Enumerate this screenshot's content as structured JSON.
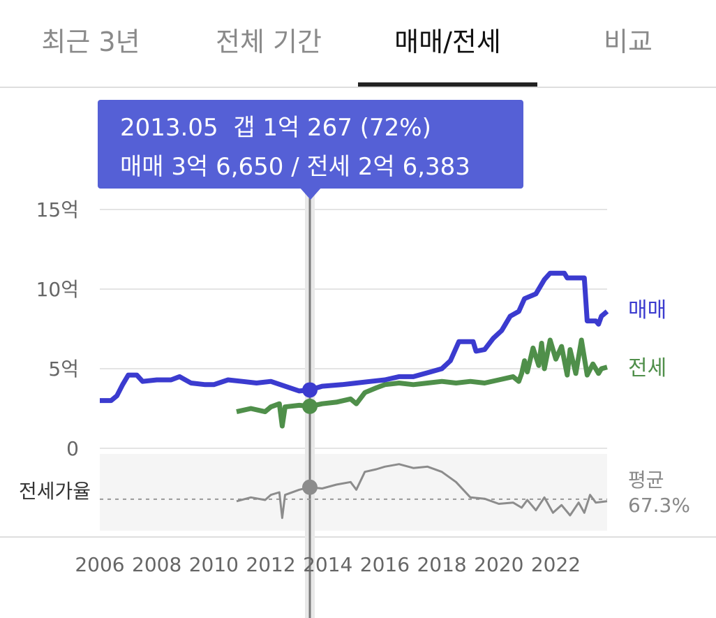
{
  "tabs": [
    {
      "label": "최근 3년",
      "active": false
    },
    {
      "label": "전체 기간",
      "active": false
    },
    {
      "label": "매매/전세",
      "active": true
    },
    {
      "label": "비교",
      "active": false
    }
  ],
  "tooltip": {
    "date": "2013.05",
    "gap": "갭 1억 267 (72%)",
    "line2": "매매 3억 6,650 / 전세 2억 6,383"
  },
  "colors": {
    "sale": "#3b3bcf",
    "jeonse": "#4f8f4a",
    "ratio": "#8c8c8c",
    "tooltip": "#5560d6"
  },
  "chart_data": {
    "type": "line",
    "x_ticks": [
      "2006",
      "2008",
      "2010",
      "2012",
      "2014",
      "2016",
      "2018",
      "2020",
      "2022"
    ],
    "y_ticks": [
      {
        "value": 0,
        "label": "0"
      },
      {
        "value": 5,
        "label": "5억"
      },
      {
        "value": 10,
        "label": "10억"
      },
      {
        "value": 15,
        "label": "15억"
      }
    ],
    "ylim": [
      0,
      15
    ],
    "xlim": [
      2006.0,
      2023.8
    ],
    "grid": true,
    "selected": {
      "x": 2013.37,
      "sale": 3.665,
      "jeonse": 2.638,
      "ratio": 72
    },
    "series": [
      {
        "name": "매매",
        "values": [
          [
            2006.0,
            3.0
          ],
          [
            2006.4,
            3.0
          ],
          [
            2006.6,
            3.3
          ],
          [
            2006.8,
            4.0
          ],
          [
            2007.0,
            4.6
          ],
          [
            2007.3,
            4.6
          ],
          [
            2007.5,
            4.2
          ],
          [
            2008.0,
            4.3
          ],
          [
            2008.5,
            4.3
          ],
          [
            2008.8,
            4.5
          ],
          [
            2009.2,
            4.1
          ],
          [
            2009.7,
            4.0
          ],
          [
            2010.0,
            4.0
          ],
          [
            2010.5,
            4.3
          ],
          [
            2011.0,
            4.2
          ],
          [
            2011.5,
            4.1
          ],
          [
            2012.0,
            4.2
          ],
          [
            2012.5,
            3.9
          ],
          [
            2013.0,
            3.6
          ],
          [
            2013.37,
            3.665
          ],
          [
            2013.8,
            3.9
          ],
          [
            2014.5,
            4.0
          ],
          [
            2015.0,
            4.1
          ],
          [
            2015.5,
            4.2
          ],
          [
            2016.0,
            4.3
          ],
          [
            2016.5,
            4.5
          ],
          [
            2017.0,
            4.5
          ],
          [
            2017.6,
            4.8
          ],
          [
            2018.0,
            5.0
          ],
          [
            2018.3,
            5.5
          ],
          [
            2018.6,
            6.7
          ],
          [
            2019.1,
            6.7
          ],
          [
            2019.2,
            6.1
          ],
          [
            2019.5,
            6.2
          ],
          [
            2019.8,
            6.9
          ],
          [
            2020.1,
            7.4
          ],
          [
            2020.4,
            8.3
          ],
          [
            2020.7,
            8.6
          ],
          [
            2020.9,
            9.4
          ],
          [
            2021.3,
            9.7
          ],
          [
            2021.6,
            10.6
          ],
          [
            2021.8,
            11.0
          ],
          [
            2022.3,
            11.0
          ],
          [
            2022.4,
            10.7
          ],
          [
            2022.9,
            10.7
          ],
          [
            2023.0,
            10.7
          ],
          [
            2023.1,
            8.0
          ],
          [
            2023.4,
            8.0
          ],
          [
            2023.5,
            7.8
          ],
          [
            2023.6,
            8.3
          ],
          [
            2023.8,
            8.6
          ]
        ]
      },
      {
        "name": "전세",
        "values": [
          [
            2010.8,
            2.3
          ],
          [
            2011.3,
            2.5
          ],
          [
            2011.8,
            2.3
          ],
          [
            2012.0,
            2.6
          ],
          [
            2012.3,
            2.8
          ],
          [
            2012.4,
            1.4
          ],
          [
            2012.5,
            2.6
          ],
          [
            2013.0,
            2.7
          ],
          [
            2013.37,
            2.638
          ],
          [
            2013.8,
            2.8
          ],
          [
            2014.3,
            2.9
          ],
          [
            2014.8,
            3.1
          ],
          [
            2015.0,
            2.8
          ],
          [
            2015.3,
            3.5
          ],
          [
            2015.7,
            3.8
          ],
          [
            2016.0,
            4.0
          ],
          [
            2016.5,
            4.1
          ],
          [
            2017.0,
            4.0
          ],
          [
            2017.5,
            4.1
          ],
          [
            2018.0,
            4.2
          ],
          [
            2018.5,
            4.1
          ],
          [
            2019.0,
            4.2
          ],
          [
            2019.5,
            4.1
          ],
          [
            2020.0,
            4.3
          ],
          [
            2020.5,
            4.5
          ],
          [
            2020.7,
            4.2
          ],
          [
            2020.8,
            4.7
          ],
          [
            2020.9,
            5.5
          ],
          [
            2021.0,
            4.8
          ],
          [
            2021.2,
            6.3
          ],
          [
            2021.4,
            5.2
          ],
          [
            2021.5,
            6.6
          ],
          [
            2021.6,
            5.0
          ],
          [
            2021.8,
            6.8
          ],
          [
            2022.0,
            5.6
          ],
          [
            2022.2,
            6.4
          ],
          [
            2022.4,
            4.6
          ],
          [
            2022.5,
            6.2
          ],
          [
            2022.7,
            4.7
          ],
          [
            2022.9,
            6.8
          ],
          [
            2023.1,
            4.6
          ],
          [
            2023.3,
            5.3
          ],
          [
            2023.5,
            4.7
          ],
          [
            2023.6,
            5.0
          ],
          [
            2023.8,
            5.1
          ]
        ]
      },
      {
        "name": "전세가율",
        "values": [
          [
            2010.8,
            66.5
          ],
          [
            2011.3,
            68.0
          ],
          [
            2011.8,
            67.0
          ],
          [
            2012.0,
            69.0
          ],
          [
            2012.3,
            70.0
          ],
          [
            2012.4,
            60.0
          ],
          [
            2012.5,
            69.0
          ],
          [
            2013.0,
            71.0
          ],
          [
            2013.37,
            72.0
          ],
          [
            2013.8,
            71.5
          ],
          [
            2014.3,
            73.0
          ],
          [
            2014.8,
            74.0
          ],
          [
            2015.0,
            71.0
          ],
          [
            2015.3,
            78.0
          ],
          [
            2015.7,
            79.0
          ],
          [
            2016.0,
            80.0
          ],
          [
            2016.5,
            81.0
          ],
          [
            2017.0,
            79.5
          ],
          [
            2017.5,
            80.0
          ],
          [
            2018.0,
            78.0
          ],
          [
            2018.5,
            74.0
          ],
          [
            2019.0,
            68.0
          ],
          [
            2019.5,
            67.5
          ],
          [
            2020.0,
            65.5
          ],
          [
            2020.5,
            66.0
          ],
          [
            2020.8,
            64.0
          ],
          [
            2021.0,
            67.0
          ],
          [
            2021.3,
            63.0
          ],
          [
            2021.6,
            68.0
          ],
          [
            2021.9,
            62.0
          ],
          [
            2022.2,
            65.0
          ],
          [
            2022.5,
            61.0
          ],
          [
            2022.8,
            66.0
          ],
          [
            2023.0,
            62.0
          ],
          [
            2023.2,
            69.0
          ],
          [
            2023.4,
            66.0
          ],
          [
            2023.8,
            66.5
          ]
        ]
      }
    ],
    "series_labels": {
      "sale": "매매",
      "jeonse": "전세"
    },
    "ratio": {
      "label": "전세가율",
      "avg_label": "평균",
      "avg_value": "67.3%",
      "avg": 67.3,
      "range": [
        55,
        85
      ]
    }
  }
}
